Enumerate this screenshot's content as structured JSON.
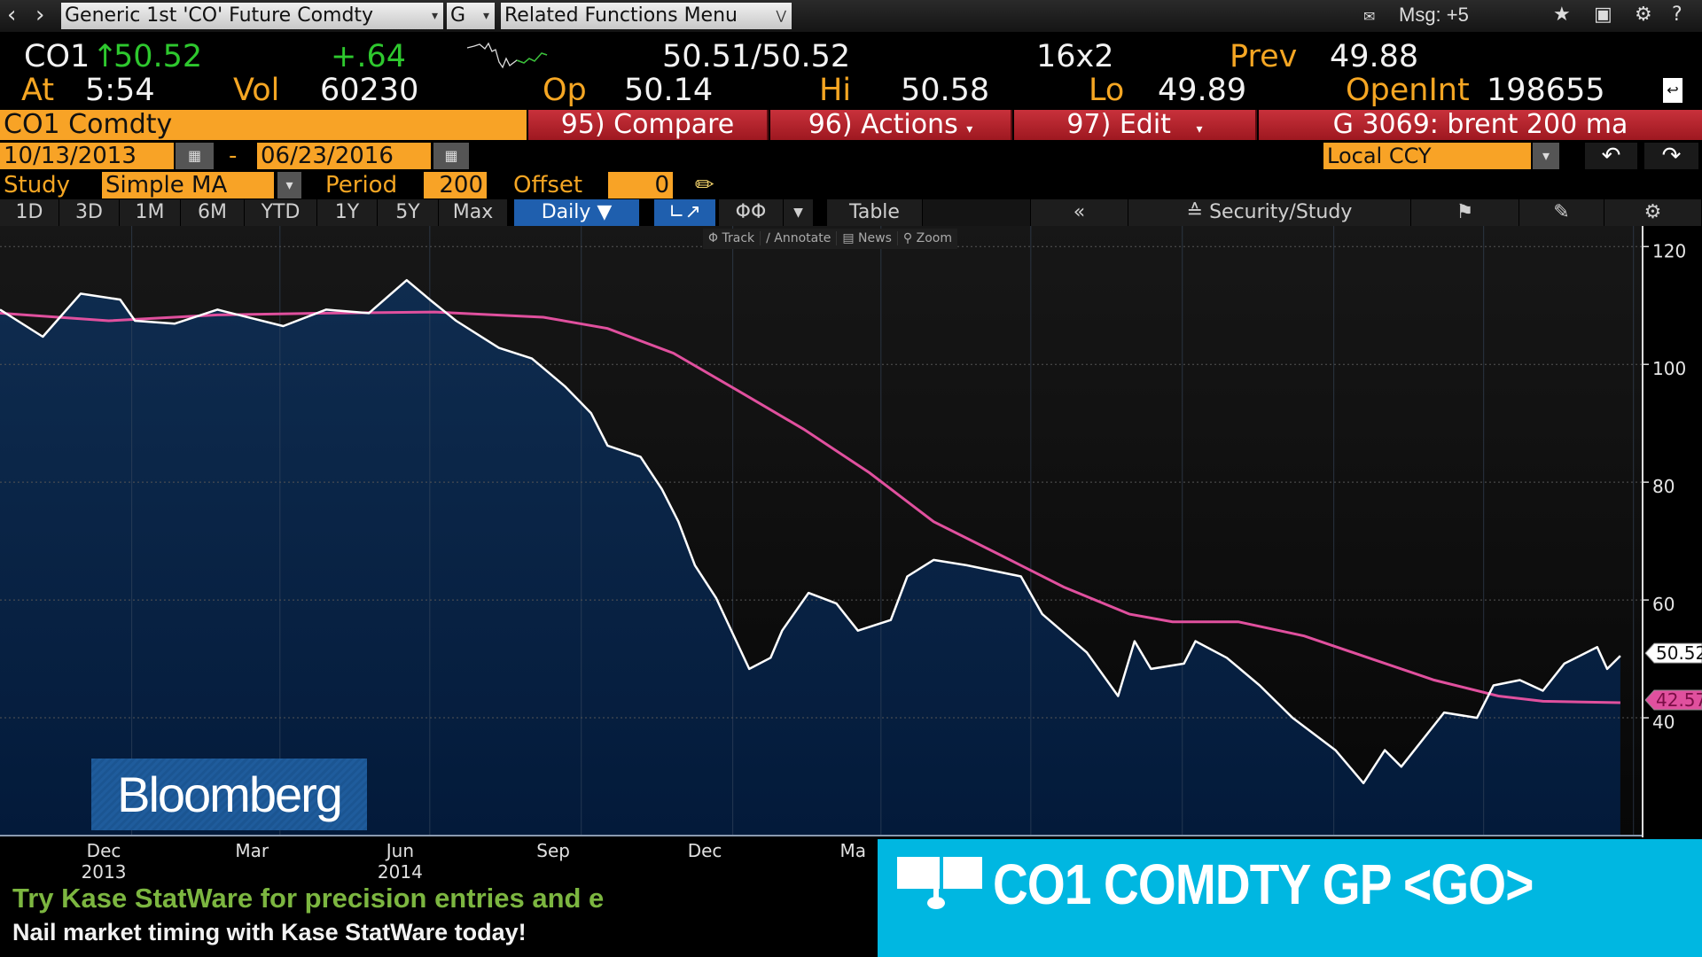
{
  "topbar": {
    "security_field": "Generic 1st 'CO' Future Comdty",
    "yellow_key": "G",
    "related_menu": "Related Functions Menu",
    "messages": "Msg: +5",
    "icons": [
      "back-icon",
      "forward-icon",
      "envelope-icon",
      "star-icon",
      "screen-icon",
      "gear-icon",
      "help-icon"
    ]
  },
  "quote": {
    "ticker": "CO1",
    "last": "50.52",
    "change": "+.64",
    "bid_ask": "50.51/50.52",
    "size": "16x2",
    "prev_label": "Prev",
    "prev": "49.88",
    "at_label": "At",
    "time": "5:54",
    "vol_label": "Vol",
    "vol": "60230",
    "open_label": "Op",
    "open": "50.14",
    "high_label": "Hi",
    "high": "50.58",
    "low_label": "Lo",
    "low": "49.89",
    "oi_label": "OpenInt",
    "oi": "198655"
  },
  "actionbar": {
    "security": "CO1 Comdty",
    "compare": "95) Compare",
    "actions": "96) Actions",
    "edit": "97) Edit",
    "chart_name": "G 3069: brent 200 ma"
  },
  "range": {
    "start": "10/13/2013",
    "dash": "-",
    "end": "06/23/2016",
    "currency": "Local CCY"
  },
  "study": {
    "label": "Study",
    "value": "Simple MA",
    "period_label": "Period",
    "period": "200",
    "offset_label": "Offset",
    "offset": "0"
  },
  "toolbar": {
    "periods": [
      "1D",
      "3D",
      "1M",
      "6M",
      "YTD",
      "1Y",
      "5Y",
      "Max"
    ],
    "frequency": "Daily",
    "table": "Table",
    "collapse": "«",
    "security_study": "Security/Study"
  },
  "mini_toolbar": [
    "Track",
    "Annotate",
    "News",
    "Zoom"
  ],
  "colors": {
    "price": "#ffffff",
    "ma": "#e0509e",
    "area_top": "#0f2c4f",
    "area_bottom": "#031a3a",
    "accent": "#f8a326",
    "red": "#b5232c",
    "banner": "#00b7e1"
  },
  "chart_data": {
    "type": "area",
    "ylim": [
      20,
      123.5
    ],
    "xlim": [
      "2013-10-13",
      "2016-07-06"
    ],
    "y_ticks": [
      120,
      100,
      80,
      60,
      40
    ],
    "grid": true,
    "x_tick_labels": [
      {
        "label": "Dec",
        "year": "2013",
        "date": "2013-12-15"
      },
      {
        "label": "Mar",
        "year": "",
        "date": "2014-03-15"
      },
      {
        "label": "Jun",
        "year": "2014",
        "date": "2014-06-13"
      },
      {
        "label": "Sep",
        "year": "",
        "date": "2014-09-14"
      },
      {
        "label": "Dec",
        "year": "",
        "date": "2014-12-15"
      },
      {
        "label": "Ma",
        "year": "",
        "date": "2015-03-15"
      }
    ],
    "last_price_tag": "50.52",
    "ma_tag": "42.57",
    "series": [
      {
        "name": "CO1 Comdty",
        "points": [
          [
            "2013-10-13",
            109.3
          ],
          [
            "2013-11-08",
            104.7
          ],
          [
            "2013-12-01",
            112
          ],
          [
            "2013-12-25",
            111
          ],
          [
            "2014-01-03",
            107.4
          ],
          [
            "2014-01-27",
            106.9
          ],
          [
            "2014-02-22",
            109.3
          ],
          [
            "2014-04-03",
            106.5
          ],
          [
            "2014-04-29",
            109.3
          ],
          [
            "2014-05-25",
            108.7
          ],
          [
            "2014-06-17",
            114.3
          ],
          [
            "2014-07-01",
            111
          ],
          [
            "2014-07-17",
            107.4
          ],
          [
            "2014-08-12",
            102.8
          ],
          [
            "2014-09-01",
            101
          ],
          [
            "2014-09-21",
            96.3
          ],
          [
            "2014-10-07",
            91.7
          ],
          [
            "2014-10-17",
            86.2
          ],
          [
            "2014-11-06",
            84.3
          ],
          [
            "2014-11-19",
            78.8
          ],
          [
            "2014-11-29",
            73.3
          ],
          [
            "2014-12-09",
            65.9
          ],
          [
            "2014-12-22",
            60.3
          ],
          [
            "2015-01-11",
            48.3
          ],
          [
            "2015-01-24",
            50.2
          ],
          [
            "2015-01-31",
            54.8
          ],
          [
            "2015-02-16",
            61.2
          ],
          [
            "2015-03-05",
            59.4
          ],
          [
            "2015-03-18",
            54.8
          ],
          [
            "2015-04-07",
            56.6
          ],
          [
            "2015-04-17",
            64
          ],
          [
            "2015-05-03",
            66.8
          ],
          [
            "2015-05-23",
            65.9
          ],
          [
            "2015-06-25",
            64
          ],
          [
            "2015-07-08",
            57.6
          ],
          [
            "2015-08-04",
            51.1
          ],
          [
            "2015-08-23",
            43.7
          ],
          [
            "2015-09-02",
            53
          ],
          [
            "2015-09-12",
            48.3
          ],
          [
            "2015-10-02",
            49.2
          ],
          [
            "2015-10-09",
            53
          ],
          [
            "2015-10-28",
            50.2
          ],
          [
            "2015-11-17",
            45.5
          ],
          [
            "2015-12-07",
            40
          ],
          [
            "2016-01-02",
            34.5
          ],
          [
            "2016-01-19",
            28.9
          ],
          [
            "2016-02-01",
            34.5
          ],
          [
            "2016-02-11",
            31.7
          ],
          [
            "2016-03-08",
            40.9
          ],
          [
            "2016-03-28",
            40
          ],
          [
            "2016-04-07",
            45.5
          ],
          [
            "2016-04-23",
            46.4
          ],
          [
            "2016-05-07",
            44.6
          ],
          [
            "2016-05-20",
            49.2
          ],
          [
            "2016-06-09",
            52
          ],
          [
            "2016-06-15",
            48.3
          ],
          [
            "2016-06-23",
            50.52
          ]
        ]
      },
      {
        "name": "Simple MA 200",
        "points": [
          [
            "2013-10-13",
            108.7
          ],
          [
            "2013-12-18",
            107.4
          ],
          [
            "2014-02-22",
            108.4
          ],
          [
            "2014-04-29",
            108.7
          ],
          [
            "2014-07-04",
            108.9
          ],
          [
            "2014-09-08",
            108
          ],
          [
            "2014-10-17",
            106.1
          ],
          [
            "2014-11-26",
            101.9
          ],
          [
            "2015-01-05",
            95.4
          ],
          [
            "2015-02-13",
            89
          ],
          [
            "2015-03-25",
            81.6
          ],
          [
            "2015-05-03",
            73.3
          ],
          [
            "2015-06-12",
            67.7
          ],
          [
            "2015-07-21",
            62.2
          ],
          [
            "2015-08-30",
            57.6
          ],
          [
            "2015-09-25",
            56.3
          ],
          [
            "2015-11-04",
            56.3
          ],
          [
            "2015-12-14",
            53.9
          ],
          [
            "2016-01-22",
            50.2
          ],
          [
            "2016-03-02",
            46.4
          ],
          [
            "2016-04-10",
            43.7
          ],
          [
            "2016-05-07",
            42.8
          ],
          [
            "2016-06-23",
            42.57
          ]
        ]
      }
    ]
  },
  "overlay": {
    "logo": "Bloomberg",
    "ticker_line1": "Try Kase StatWare for precision entries and e",
    "ticker_line2": "Nail market timing with Kase StatWare today!",
    "command": "CO1 COMDTY GP <GO>"
  }
}
